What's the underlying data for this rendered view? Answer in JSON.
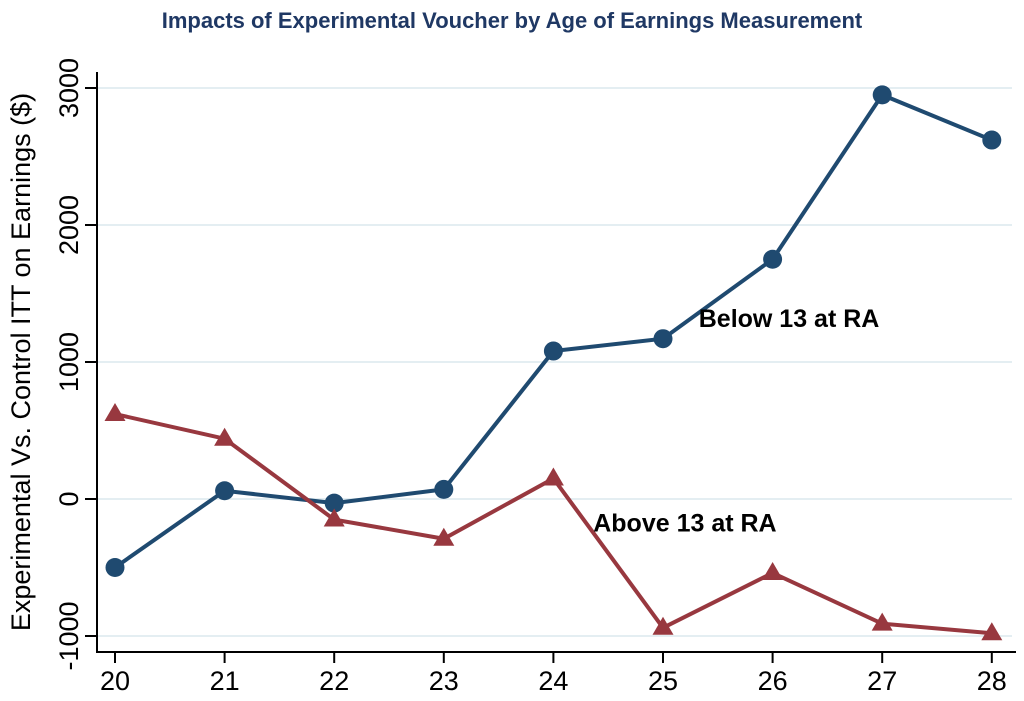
{
  "page_title": "Impacts of Experimental Voucher by Age of Earnings Measurement",
  "colors": {
    "title_text": "#1F3864",
    "navy_series": "#1F4A70",
    "maroon_series": "#98383F",
    "gridline": "#E4EEF2",
    "axis": "#000000",
    "annotation_text": "#000000",
    "background": "#FFFFFF"
  },
  "chart_data": {
    "type": "line",
    "title": "Impacts of Experimental Voucher by Age of Earnings Measurement",
    "xlabel": "",
    "ylabel": "Experimental Vs. Control ITT on Earnings ($)",
    "x": [
      20,
      21,
      22,
      23,
      24,
      25,
      26,
      27,
      28
    ],
    "x_tick_labels": [
      "20",
      "21",
      "22",
      "23",
      "24",
      "25",
      "26",
      "27",
      "28"
    ],
    "y_ticks": [
      -1000,
      0,
      1000,
      2000,
      3000
    ],
    "y_tick_labels": [
      "-1000",
      "0",
      "1000",
      "2000",
      "3000"
    ],
    "xlim": [
      19.8,
      28.2
    ],
    "ylim": [
      -1100,
      3100
    ],
    "grid": "horizontal-only",
    "legend_position": "inline-annotations",
    "series": [
      {
        "name": "Below 13 at RA",
        "marker": "circle",
        "color": "#1F4A70",
        "values": [
          -500,
          60,
          -30,
          70,
          1080,
          1170,
          1750,
          2950,
          2620
        ]
      },
      {
        "name": "Above 13 at RA",
        "marker": "triangle",
        "color": "#98383F",
        "values": [
          620,
          440,
          -150,
          -290,
          150,
          -940,
          -540,
          -910,
          -980
        ]
      }
    ],
    "annotations": [
      {
        "text": "Below 13 at RA",
        "x": 26.15,
        "y": 1320
      },
      {
        "text": "Above 13 at RA",
        "x": 25.2,
        "y": -170
      }
    ]
  }
}
